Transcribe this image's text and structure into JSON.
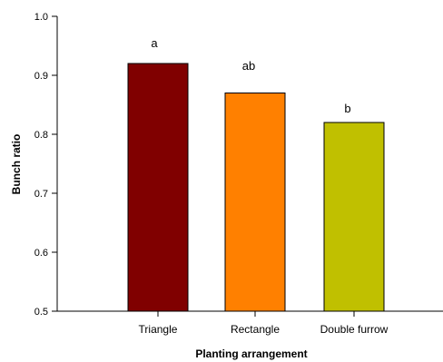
{
  "chart_data": {
    "type": "bar",
    "title": "",
    "xlabel": "Planting arrangement",
    "ylabel": "Bunch ratio",
    "ylim": [
      0.5,
      1.0
    ],
    "yticks": [
      "0.5",
      "0.6",
      "0.7",
      "0.8",
      "0.9",
      "1.0"
    ],
    "categories": [
      "Triangle",
      "Rectangle",
      "Double furrow"
    ],
    "values": [
      0.92,
      0.87,
      0.82
    ],
    "significance_letters": [
      "a",
      "ab",
      "b"
    ],
    "colors": [
      "#800000",
      "#ff8000",
      "#c0c000"
    ],
    "grid": false,
    "legend": "none"
  }
}
